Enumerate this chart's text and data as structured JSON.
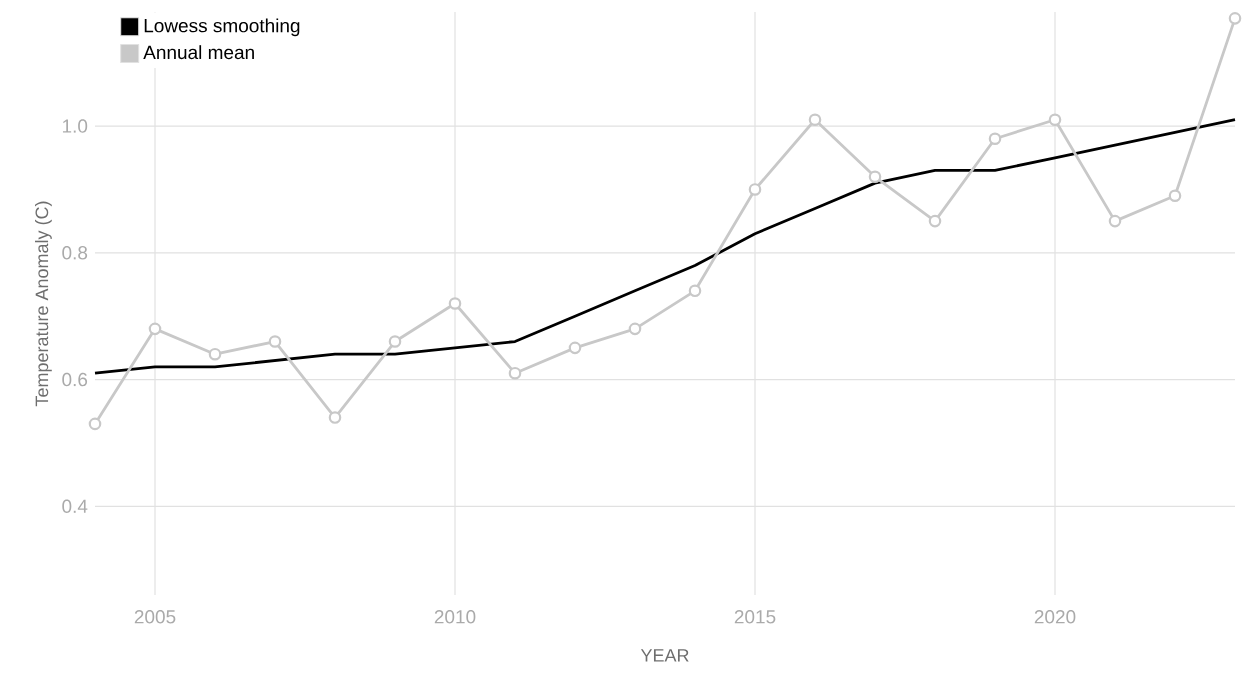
{
  "chart_data": {
    "type": "line",
    "xlabel": "YEAR",
    "ylabel": "Temperature Anomaly (C)",
    "x": [
      2004,
      2005,
      2006,
      2007,
      2008,
      2009,
      2010,
      2011,
      2012,
      2013,
      2014,
      2015,
      2016,
      2017,
      2018,
      2019,
      2020,
      2021,
      2022,
      2023
    ],
    "series": [
      {
        "name": "Lowess smoothing",
        "color": "#000000",
        "marker": "none",
        "values": [
          0.61,
          0.62,
          0.62,
          0.63,
          0.64,
          0.64,
          0.65,
          0.66,
          0.7,
          0.74,
          0.78,
          0.83,
          0.87,
          0.91,
          0.93,
          0.93,
          0.95,
          0.97,
          0.99,
          1.01
        ]
      },
      {
        "name": "Annual mean",
        "color": "#c8c8c8",
        "marker": "circle",
        "values": [
          0.53,
          0.68,
          0.64,
          0.66,
          0.54,
          0.66,
          0.72,
          0.61,
          0.65,
          0.68,
          0.74,
          0.9,
          1.01,
          0.92,
          0.85,
          0.98,
          1.01,
          0.85,
          0.89,
          1.17
        ]
      }
    ],
    "xlim": [
      2004,
      2023
    ],
    "ylim": [
      0.26,
      1.18
    ],
    "xticks": [
      2005,
      2010,
      2015,
      2020
    ],
    "yticks": [
      0.4,
      0.6,
      0.8,
      {
        "value": 1.0,
        "label": "1.0"
      }
    ],
    "grid": true,
    "legend": "top left",
    "line_style": "solid"
  }
}
